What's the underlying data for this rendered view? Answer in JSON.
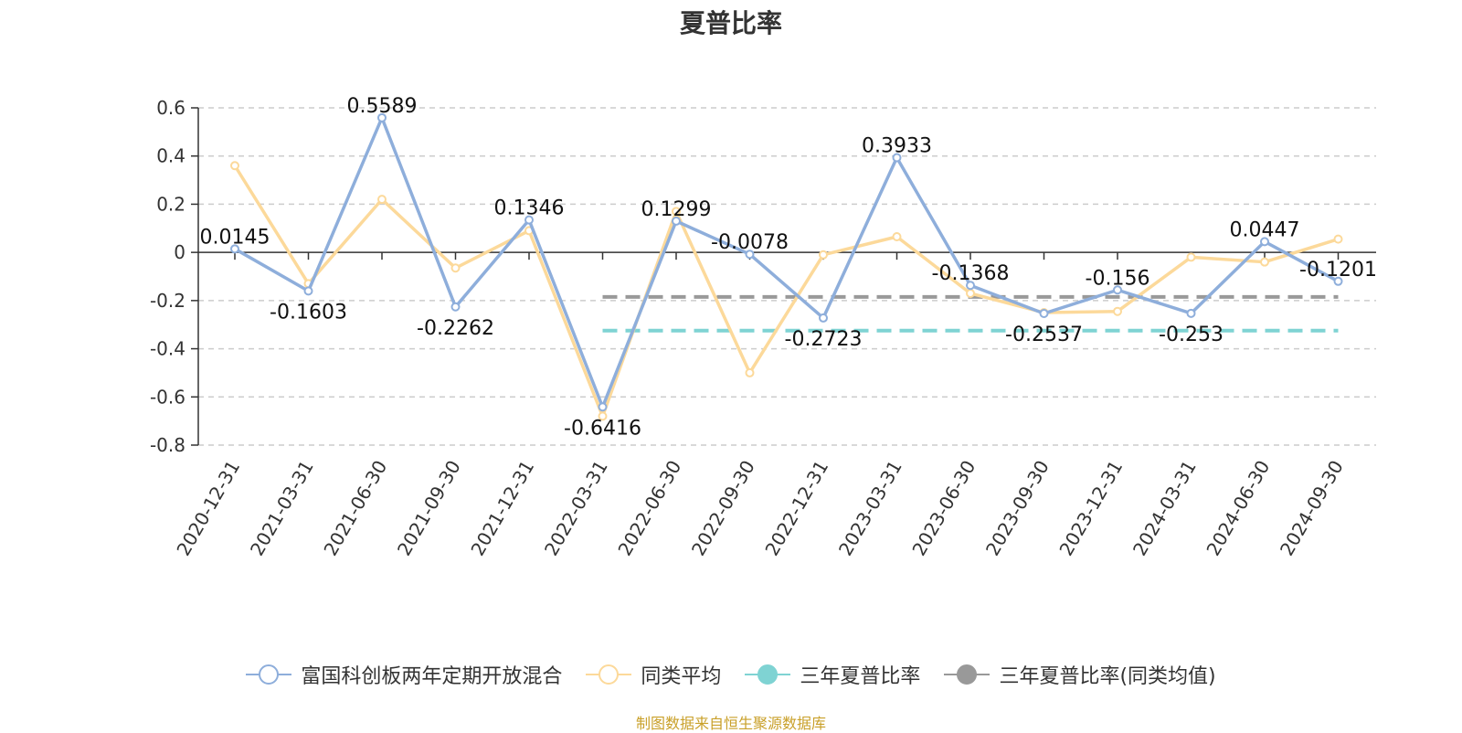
{
  "chart_data": {
    "type": "line",
    "title": "夏普比率",
    "categories": [
      "2020-12-31",
      "2021-03-31",
      "2021-06-30",
      "2021-09-30",
      "2021-12-31",
      "2022-03-31",
      "2022-06-30",
      "2022-09-30",
      "2022-12-31",
      "2023-03-31",
      "2023-06-30",
      "2023-09-30",
      "2023-12-31",
      "2024-03-31",
      "2024-06-30",
      "2024-09-30"
    ],
    "ylim": [
      -0.8,
      0.6
    ],
    "yticks": [
      "0.6",
      "0.4",
      "0.2",
      "0",
      "-0.2",
      "-0.4",
      "-0.6",
      "-0.8"
    ],
    "grid": true,
    "legend_position": "bottom",
    "series": [
      {
        "name": "富国科创板两年定期开放混合",
        "color": "#8eaedb",
        "values": [
          0.0145,
          -0.1603,
          0.5589,
          -0.2262,
          0.1346,
          -0.6416,
          0.1299,
          -0.0078,
          -0.2723,
          0.3933,
          -0.1368,
          -0.2537,
          -0.156,
          -0.253,
          0.0447,
          -0.1201
        ],
        "labels": [
          "0.0145",
          "-0.1603",
          "0.5589",
          "-0.2262",
          "0.1346",
          "-0.6416",
          "0.1299",
          "-0.0078",
          "-0.2723",
          "0.3933",
          "-0.1368",
          "-0.2537",
          "-0.156",
          "-0.253",
          "0.0447",
          "-0.1201"
        ]
      },
      {
        "name": "同类平均",
        "color": "#fcd99a",
        "values": [
          0.36,
          -0.13,
          0.22,
          -0.065,
          0.09,
          -0.68,
          0.17,
          -0.5,
          -0.01,
          0.065,
          -0.17,
          -0.25,
          -0.245,
          -0.02,
          -0.04,
          0.055
        ]
      },
      {
        "name": "三年夏普比率",
        "color": "#7fd3d3",
        "style": "dashed",
        "x_range": [
          "2022-03-31",
          "2024-09-30"
        ],
        "value": -0.325
      },
      {
        "name": "三年夏普比率(同类均值)",
        "color": "#999999",
        "style": "dashed",
        "x_range": [
          "2022-03-31",
          "2024-09-30"
        ],
        "value": -0.185
      }
    ]
  },
  "legend": [
    {
      "label": "富国科创板两年定期开放混合",
      "color": "#8eaedb",
      "filled": false
    },
    {
      "label": "同类平均",
      "color": "#fcd99a",
      "filled": false
    },
    {
      "label": "三年夏普比率",
      "color": "#7fd3d3",
      "filled": true
    },
    {
      "label": "三年夏普比率(同类均值)",
      "color": "#999999",
      "filled": true
    }
  ],
  "source_note": "制图数据来自恒生聚源数据库"
}
